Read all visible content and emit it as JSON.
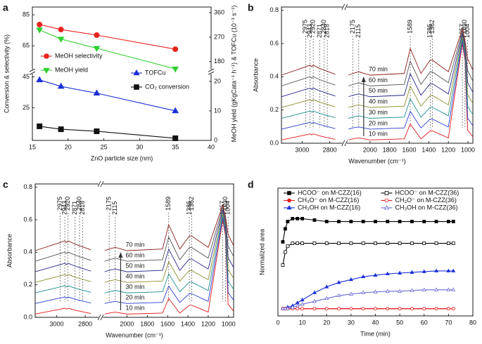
{
  "chart_data": [
    {
      "type": "line",
      "panel": "a",
      "xlabel": "ZnO particle size (nm)",
      "ylabel": "Conversion & selectivity (%)",
      "y2label": "MeOH yield (gKgCata⁻¹ h⁻¹) & TOFCu (10⁻³ s⁻¹)",
      "x": [
        16,
        19,
        24,
        35
      ],
      "xlim": [
        15,
        40
      ],
      "xticks": [
        15,
        20,
        25,
        30,
        35,
        40
      ],
      "ylim": [
        4,
        90
      ],
      "yticks": [
        25,
        45,
        65,
        85
      ],
      "y2lim": [
        150,
        381
      ],
      "y2ticks": [
        180,
        270,
        360
      ],
      "y3lim": [
        0,
        22.6
      ],
      "y3ticks": [
        0,
        10,
        20
      ],
      "legend": "inside",
      "series": [
        {
          "name": "MeOH selectivity",
          "color": "#e8221c",
          "marker": "circle",
          "values": [
            78.7,
            75.5,
            71.9,
            62.8
          ]
        },
        {
          "name": "MeOH yield",
          "color": "#2fcf2f",
          "marker": "triangle-down",
          "axis": "y2",
          "values": [
            297,
            263,
            229,
            153
          ]
        },
        {
          "name": "TOFCu",
          "color": "#1a2fd6",
          "marker": "triangle",
          "axis": "y3",
          "values": [
            20.5,
            18.3,
            16,
            10
          ]
        },
        {
          "name": "CO₂ conversion",
          "color": "#111111",
          "marker": "square",
          "values": [
            13.1,
            11.2,
            9.9,
            5.4
          ]
        }
      ]
    },
    {
      "type": "line",
      "panel": "b",
      "xlabel": "Wavenumber (cm⁻¹)",
      "ylabel": "Absorbance",
      "x": [
        3150,
        2975,
        2943,
        2930,
        2920,
        2871,
        2840,
        2760,
        2220,
        2175,
        2115,
        2000,
        1650,
        1589,
        1480,
        1386,
        1362,
        1200,
        1057,
        1030,
        1004,
        950
      ],
      "xlim": [
        3150,
        950
      ],
      "xbreak": [
        2720,
        2220
      ],
      "xticks": [
        3000,
        2800,
        2000,
        1800,
        1600,
        1400,
        1200,
        1000
      ],
      "ylim": [
        0,
        0.82
      ],
      "yticks": [
        {
          "value": 0,
          "label": "0.0"
        },
        0.2,
        0.4,
        0.6,
        0.8
      ],
      "legend": "inline",
      "peak_labels": [
        2975,
        2943,
        2920,
        2871,
        2840,
        2818,
        2175,
        2115,
        1589,
        1386,
        1362,
        1057,
        1030,
        1004
      ],
      "series": [
        {
          "name": "10 min",
          "color": "#e41a1c",
          "values": [
            0.02,
            0.05,
            0.056,
            0.05,
            0.056,
            0.044,
            0.038,
            0.023,
            0.02,
            0.026,
            0.032,
            0.02,
            0.026,
            0.116,
            0.026,
            0.074,
            0.074,
            0.032,
            0.6,
            0.5,
            0.08,
            0.038
          ]
        },
        {
          "name": "20 min",
          "color": "#2b3bd0",
          "values": [
            0.085,
            0.119,
            0.125,
            0.119,
            0.125,
            0.112,
            0.105,
            0.088,
            0.085,
            0.092,
            0.098,
            0.085,
            0.092,
            0.192,
            0.092,
            0.145,
            0.145,
            0.098,
            0.615,
            0.52,
            0.152,
            0.105
          ]
        },
        {
          "name": "30 min",
          "color": "#1f8f8f",
          "values": [
            0.15,
            0.187,
            0.194,
            0.187,
            0.194,
            0.179,
            0.172,
            0.154,
            0.15,
            0.157,
            0.165,
            0.15,
            0.157,
            0.267,
            0.157,
            0.216,
            0.216,
            0.165,
            0.63,
            0.54,
            0.223,
            0.172
          ]
        },
        {
          "name": "40 min",
          "color": "#8c8c2c",
          "values": [
            0.215,
            0.255,
            0.263,
            0.255,
            0.263,
            0.247,
            0.239,
            0.219,
            0.215,
            0.223,
            0.231,
            0.215,
            0.223,
            0.343,
            0.223,
            0.287,
            0.287,
            0.231,
            0.645,
            0.56,
            0.295,
            0.239
          ]
        },
        {
          "name": "50 min",
          "color": "#27278f",
          "values": [
            0.28,
            0.324,
            0.332,
            0.324,
            0.332,
            0.315,
            0.306,
            0.284,
            0.28,
            0.289,
            0.297,
            0.28,
            0.289,
            0.419,
            0.289,
            0.358,
            0.358,
            0.297,
            0.66,
            0.58,
            0.367,
            0.306
          ]
        },
        {
          "name": "60 min",
          "color": "#555555",
          "values": [
            0.345,
            0.392,
            0.401,
            0.392,
            0.401,
            0.382,
            0.373,
            0.35,
            0.345,
            0.354,
            0.364,
            0.345,
            0.354,
            0.494,
            0.354,
            0.429,
            0.429,
            0.364,
            0.675,
            0.6,
            0.438,
            0.373
          ]
        },
        {
          "name": "70 min",
          "color": "#8b1c1c",
          "values": [
            0.41,
            0.46,
            0.47,
            0.46,
            0.47,
            0.45,
            0.44,
            0.415,
            0.41,
            0.42,
            0.43,
            0.41,
            0.42,
            0.57,
            0.42,
            0.5,
            0.5,
            0.43,
            0.69,
            0.62,
            0.51,
            0.44
          ]
        }
      ]
    },
    {
      "type": "line",
      "panel": "c",
      "xlabel": "Wavenumber (cm⁻¹)",
      "ylabel": "Absorbance",
      "x": [
        3150,
        2975,
        2943,
        2930,
        2920,
        2871,
        2840,
        2760,
        2220,
        2175,
        2115,
        2000,
        1650,
        1589,
        1480,
        1386,
        1362,
        1200,
        1057,
        1030,
        1004,
        950
      ],
      "xlim": [
        3150,
        950
      ],
      "xbreak": [
        2720,
        2220
      ],
      "xticks": [
        3000,
        2800,
        2000,
        1800,
        1600,
        1400,
        1200,
        1000
      ],
      "ylim": [
        0,
        0.82
      ],
      "yticks": [
        {
          "value": 0,
          "label": "0.0"
        },
        0.2,
        0.4,
        0.6,
        0.8
      ],
      "legend": "inline",
      "peak_labels": [
        2975,
        2943,
        2920,
        2871,
        2840,
        2818,
        2175,
        2115,
        1589,
        1386,
        1362,
        1057,
        1030,
        1004
      ],
      "series": [
        {
          "name": "10 min",
          "color": "#e41a1c",
          "values": [
            0.02,
            0.05,
            0.056,
            0.05,
            0.056,
            0.044,
            0.038,
            0.023,
            0.02,
            0.026,
            0.032,
            0.02,
            0.026,
            0.116,
            0.026,
            0.074,
            0.074,
            0.032,
            0.6,
            0.5,
            0.08,
            0.038
          ]
        },
        {
          "name": "20 min",
          "color": "#2b3bd0",
          "values": [
            0.085,
            0.119,
            0.125,
            0.119,
            0.125,
            0.112,
            0.105,
            0.088,
            0.085,
            0.092,
            0.098,
            0.085,
            0.092,
            0.192,
            0.092,
            0.145,
            0.145,
            0.098,
            0.615,
            0.52,
            0.152,
            0.105
          ]
        },
        {
          "name": "30 min",
          "color": "#1f8f8f",
          "values": [
            0.15,
            0.187,
            0.194,
            0.187,
            0.194,
            0.179,
            0.172,
            0.154,
            0.15,
            0.157,
            0.165,
            0.15,
            0.157,
            0.267,
            0.157,
            0.216,
            0.216,
            0.165,
            0.63,
            0.54,
            0.223,
            0.172
          ]
        },
        {
          "name": "40 min",
          "color": "#8c8c2c",
          "values": [
            0.215,
            0.255,
            0.263,
            0.255,
            0.263,
            0.247,
            0.239,
            0.219,
            0.215,
            0.223,
            0.231,
            0.215,
            0.223,
            0.343,
            0.223,
            0.287,
            0.287,
            0.231,
            0.645,
            0.56,
            0.295,
            0.239
          ]
        },
        {
          "name": "50 min",
          "color": "#27278f",
          "values": [
            0.28,
            0.324,
            0.332,
            0.324,
            0.332,
            0.315,
            0.306,
            0.284,
            0.28,
            0.289,
            0.297,
            0.28,
            0.289,
            0.419,
            0.289,
            0.358,
            0.358,
            0.297,
            0.66,
            0.58,
            0.367,
            0.306
          ]
        },
        {
          "name": "60 min",
          "color": "#555555",
          "values": [
            0.345,
            0.392,
            0.401,
            0.392,
            0.401,
            0.382,
            0.373,
            0.35,
            0.345,
            0.354,
            0.364,
            0.345,
            0.354,
            0.494,
            0.354,
            0.429,
            0.429,
            0.364,
            0.675,
            0.6,
            0.438,
            0.373
          ]
        },
        {
          "name": "70 min",
          "color": "#8b1c1c",
          "values": [
            0.41,
            0.46,
            0.47,
            0.46,
            0.47,
            0.45,
            0.44,
            0.415,
            0.41,
            0.42,
            0.43,
            0.41,
            0.42,
            0.57,
            0.42,
            0.5,
            0.5,
            0.43,
            0.69,
            0.62,
            0.51,
            0.44
          ]
        }
      ]
    },
    {
      "type": "line",
      "panel": "d",
      "xlabel": "Time (min)",
      "ylabel": "Normalized area",
      "x": [
        2,
        3,
        4,
        6,
        8,
        10,
        15,
        20,
        25,
        30,
        35,
        40,
        45,
        50,
        55,
        60,
        65,
        70,
        72
      ],
      "xlim": [
        0,
        80
      ],
      "xticks": [
        0,
        10,
        20,
        30,
        40,
        50,
        60,
        70,
        80
      ],
      "ylim": [
        0.12,
        1.0
      ],
      "legend": "upper left",
      "series": [
        {
          "name": "HCOO⁻ on M-CZZ(16)",
          "color": "#000000",
          "marker": "square",
          "values": [
            0.63,
            0.72,
            0.77,
            0.79,
            0.79,
            0.79,
            0.78,
            0.77,
            0.77,
            0.77,
            0.77,
            0.77,
            0.77,
            0.77,
            0.77,
            0.77,
            0.77,
            0.77,
            0.77
          ]
        },
        {
          "name": "CH₃O⁻ on M-CZZ(16)",
          "color": "#e41a1c",
          "marker": "circle",
          "values": [
            0.17,
            0.17,
            0.17,
            0.17,
            0.17,
            0.17,
            0.17,
            0.17,
            0.17,
            0.17,
            0.17,
            0.17,
            0.17,
            0.17,
            0.17,
            0.17,
            0.17,
            0.17,
            0.17
          ]
        },
        {
          "name": "CH₃OH on M-CZZ(16)",
          "color": "#1a2fd6",
          "marker": "triangle",
          "values": [
            0.17,
            0.17,
            0.18,
            0.19,
            0.21,
            0.23,
            0.28,
            0.32,
            0.35,
            0.37,
            0.39,
            0.4,
            0.41,
            0.415,
            0.42,
            0.425,
            0.43,
            0.43,
            0.43
          ]
        },
        {
          "name": "HCOO⁻ on M-CZZ(36)",
          "color": "#000000",
          "marker": "square-open",
          "values": [
            0.47,
            0.56,
            0.6,
            0.62,
            0.62,
            0.62,
            0.62,
            0.62,
            0.62,
            0.62,
            0.62,
            0.62,
            0.62,
            0.62,
            0.62,
            0.62,
            0.62,
            0.62,
            0.62
          ]
        },
        {
          "name": "CH₃O⁻ on M-CZZ(36)",
          "color": "#e41a1c",
          "marker": "circle-open",
          "values": [
            0.17,
            0.17,
            0.17,
            0.17,
            0.17,
            0.17,
            0.17,
            0.17,
            0.17,
            0.17,
            0.17,
            0.17,
            0.17,
            0.17,
            0.17,
            0.17,
            0.17,
            0.17,
            0.17
          ]
        },
        {
          "name": "CH₃OH on M-CZZ(36)",
          "color": "#6a6ad6",
          "marker": "triangle-open",
          "values": [
            0.17,
            0.17,
            0.17,
            0.18,
            0.19,
            0.2,
            0.22,
            0.24,
            0.26,
            0.27,
            0.28,
            0.285,
            0.29,
            0.29,
            0.295,
            0.3,
            0.3,
            0.3,
            0.3
          ]
        }
      ]
    }
  ]
}
